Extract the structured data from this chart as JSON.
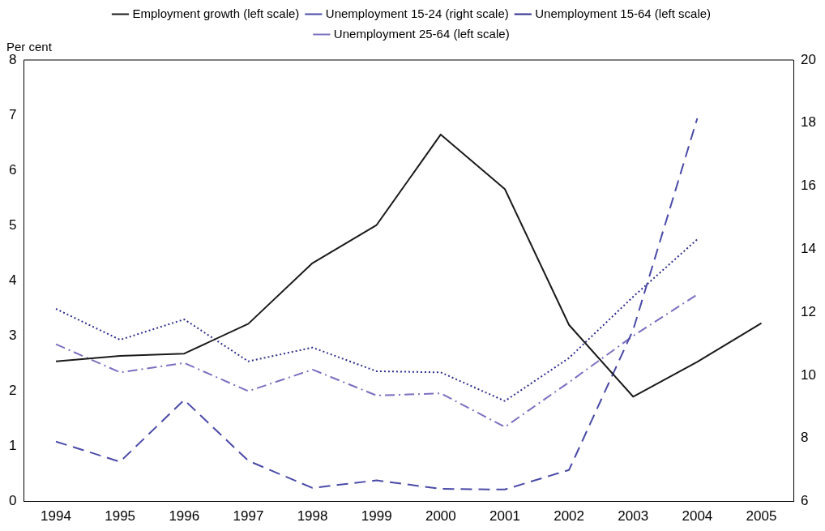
{
  "chart_data": {
    "type": "line",
    "ylabel": "Per cent",
    "categories": [
      "1994",
      "1995",
      "1996",
      "1997",
      "1998",
      "1999",
      "2000",
      "2001",
      "2002",
      "2003",
      "2004",
      "2005"
    ],
    "series": [
      {
        "name": "Employment growth (left scale)",
        "color": "#1a1a1a",
        "line_style": "solid",
        "values": [
          2.54,
          2.64,
          2.68,
          3.22,
          4.32,
          5.01,
          6.65,
          5.66,
          3.2,
          1.9,
          2.53,
          3.23
        ]
      },
      {
        "name": "Unemployment 15-24 (right scale)",
        "color": "#4a4aa8",
        "line_style": "dashed",
        "axis": "y2",
        "values": [
          7.9,
          7.26,
          9.22,
          7.29,
          6.43,
          6.67,
          6.4,
          6.38,
          7.0,
          11.44,
          18.15,
          null
        ]
      },
      {
        "name": "Unemployment 15-64 (left scale)",
        "color": "#2e2e8c",
        "line_style": "dotted",
        "values": [
          3.49,
          2.93,
          3.3,
          2.54,
          2.79,
          2.36,
          2.34,
          1.82,
          2.6,
          3.71,
          4.75,
          null
        ]
      },
      {
        "name": "Unemployment 25-64 (left scale)",
        "color": "#7a70c0",
        "line_style": "dashdot",
        "values": [
          2.85,
          2.34,
          2.51,
          2.0,
          2.39,
          1.92,
          1.96,
          1.35,
          2.16,
          3.0,
          3.75,
          null
        ]
      }
    ],
    "ylim": [
      0,
      8
    ],
    "yticks": [
      0,
      1,
      2,
      3,
      4,
      5,
      6,
      7,
      8
    ],
    "y2lim": [
      6,
      20
    ],
    "y2ticks": [
      6,
      8,
      10,
      12,
      14,
      16,
      18,
      20
    ],
    "grid": false,
    "legend": "top",
    "marker": "none"
  }
}
